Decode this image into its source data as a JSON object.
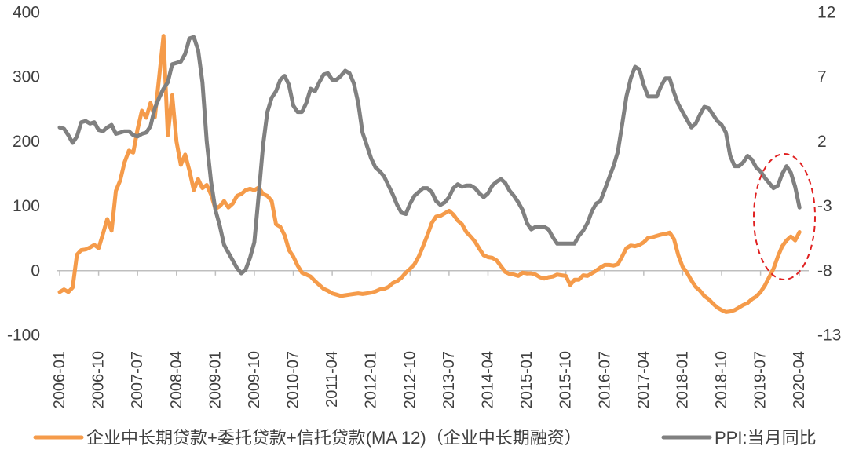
{
  "chart_data": {
    "type": "line",
    "legend": "bottom",
    "grid": false,
    "x": [
      "2006-01",
      "2006-02",
      "2006-03",
      "2006-04",
      "2006-05",
      "2006-06",
      "2006-07",
      "2006-08",
      "2006-09",
      "2006-10",
      "2006-11",
      "2006-12",
      "2007-01",
      "2007-02",
      "2007-03",
      "2007-04",
      "2007-05",
      "2007-06",
      "2007-07",
      "2007-08",
      "2007-09",
      "2007-10",
      "2007-11",
      "2007-12",
      "2008-01",
      "2008-02",
      "2008-03",
      "2008-04",
      "2008-05",
      "2008-06",
      "2008-07",
      "2008-08",
      "2008-09",
      "2008-10",
      "2008-11",
      "2008-12",
      "2009-01",
      "2009-02",
      "2009-03",
      "2009-04",
      "2009-05",
      "2009-06",
      "2009-07",
      "2009-08",
      "2009-09",
      "2009-10",
      "2009-11",
      "2009-12",
      "2010-01",
      "2010-02",
      "2010-03",
      "2010-04",
      "2010-05",
      "2010-06",
      "2010-07",
      "2010-08",
      "2010-09",
      "2010-10",
      "2010-11",
      "2010-12",
      "2011-01",
      "2011-02",
      "2011-03",
      "2011-04",
      "2011-05",
      "2011-06",
      "2011-07",
      "2011-08",
      "2011-09",
      "2011-10",
      "2011-11",
      "2011-12",
      "2012-01",
      "2012-02",
      "2012-03",
      "2012-04",
      "2012-05",
      "2012-06",
      "2012-07",
      "2012-08",
      "2012-09",
      "2012-10",
      "2012-11",
      "2012-12",
      "2013-01",
      "2013-02",
      "2013-03",
      "2013-04",
      "2013-05",
      "2013-06",
      "2013-07",
      "2013-08",
      "2013-09",
      "2013-10",
      "2013-11",
      "2013-12",
      "2014-01",
      "2014-02",
      "2014-03",
      "2014-04",
      "2014-05",
      "2014-06",
      "2014-07",
      "2014-08",
      "2014-09",
      "2014-10",
      "2014-11",
      "2014-12",
      "2015-01",
      "2015-02",
      "2015-03",
      "2015-04",
      "2015-05",
      "2015-06",
      "2015-07",
      "2015-08",
      "2015-09",
      "2015-10",
      "2015-11",
      "2015-12",
      "2016-01",
      "2016-02",
      "2016-03",
      "2016-04",
      "2016-05",
      "2016-06",
      "2016-07",
      "2016-08",
      "2016-09",
      "2016-10",
      "2016-11",
      "2016-12",
      "2017-01",
      "2017-02",
      "2017-03",
      "2017-04",
      "2017-05",
      "2017-06",
      "2017-07",
      "2017-08",
      "2017-09",
      "2017-10",
      "2017-11",
      "2017-12",
      "2018-01",
      "2018-02",
      "2018-03",
      "2018-04",
      "2018-05",
      "2018-06",
      "2018-07",
      "2018-08",
      "2018-09",
      "2018-10",
      "2018-11",
      "2018-12",
      "2019-01",
      "2019-02",
      "2019-03",
      "2019-04",
      "2019-05",
      "2019-06",
      "2019-07",
      "2019-08",
      "2019-09",
      "2019-10",
      "2019-11",
      "2019-12",
      "2020-01",
      "2020-02",
      "2020-03",
      "2020-04"
    ],
    "x_ticks": [
      "2006-01",
      "2006-10",
      "2007-07",
      "2008-04",
      "2009-01",
      "2009-10",
      "2010-07",
      "2011-04",
      "2012-01",
      "2012-10",
      "2013-07",
      "2014-04",
      "2015-01",
      "2015-10",
      "2016-07",
      "2017-04",
      "2018-01",
      "2018-10",
      "2019-07",
      "2020-04"
    ],
    "y_left": {
      "min": -100,
      "max": 400,
      "ticks": [
        -100,
        0,
        100,
        200,
        300,
        400
      ],
      "x_axis_crosses": 0
    },
    "y_right": {
      "min": -13,
      "max": 12,
      "ticks": [
        -13,
        -8,
        -3,
        2,
        7,
        12
      ]
    },
    "series": [
      {
        "name": "企业中长期贷款+委托贷款+信托贷款(MA 12)（企业中长期融资）",
        "axis": "left",
        "color": "#F59B4A",
        "values": [
          -33,
          -29,
          -33,
          -26,
          25,
          32,
          33,
          36,
          40,
          35,
          57,
          80,
          62,
          124,
          140,
          168,
          186,
          183,
          219,
          248,
          237,
          260,
          238,
          300,
          364,
          210,
          272,
          200,
          164,
          180,
          155,
          125,
          142,
          128,
          133,
          118,
          96,
          100,
          108,
          98,
          104,
          116,
          119,
          125,
          127,
          125,
          129,
          119,
          116,
          108,
          72,
          68,
          55,
          32,
          22,
          8,
          -3,
          -6,
          -9,
          -16,
          -22,
          -28,
          -31,
          -35,
          -37,
          -39,
          -38,
          -37,
          -36,
          -35,
          -36,
          -35,
          -34,
          -32,
          -29,
          -28,
          -25,
          -19,
          -16,
          -11,
          -3,
          3,
          10,
          22,
          38,
          55,
          74,
          84,
          85,
          89,
          93,
          87,
          78,
          72,
          60,
          53,
          45,
          34,
          24,
          21,
          20,
          16,
          7,
          -2,
          -5,
          -6,
          -8,
          -3,
          -4,
          -4,
          -6,
          -10,
          -12,
          -10,
          -9,
          -6,
          -7,
          -8,
          -22,
          -14,
          -14,
          -7,
          -8,
          -4,
          0,
          5,
          9,
          9,
          8,
          10,
          22,
          35,
          39,
          38,
          40,
          44,
          51,
          52,
          54,
          56,
          57,
          59,
          49,
          24,
          6,
          -3,
          -15,
          -25,
          -31,
          -39,
          -44,
          -51,
          -57,
          -61,
          -64,
          -63,
          -61,
          -57,
          -53,
          -50,
          -44,
          -40,
          -33,
          -23,
          -10,
          3,
          22,
          38,
          47,
          53,
          47,
          60
        ]
      },
      {
        "name": "PPI:当月同比",
        "axis": "right",
        "color": "#808080",
        "values": [
          3.1,
          3.0,
          2.5,
          1.9,
          2.4,
          3.5,
          3.6,
          3.4,
          3.5,
          2.9,
          2.8,
          3.1,
          3.3,
          2.6,
          2.7,
          2.8,
          2.8,
          2.5,
          2.4,
          2.6,
          2.7,
          3.2,
          4.6,
          5.4,
          6.1,
          6.6,
          8.0,
          8.1,
          8.2,
          8.8,
          10.0,
          10.1,
          9.1,
          6.6,
          2.0,
          -1.1,
          -3.3,
          -4.5,
          -6.0,
          -6.6,
          -7.2,
          -7.8,
          -8.2,
          -7.9,
          -7.0,
          -5.8,
          -2.1,
          1.7,
          4.3,
          5.4,
          5.9,
          6.8,
          7.1,
          6.4,
          4.8,
          4.3,
          4.3,
          5.0,
          6.1,
          5.9,
          6.6,
          7.2,
          7.3,
          6.8,
          6.8,
          7.1,
          7.5,
          7.3,
          6.5,
          5.0,
          2.7,
          1.7,
          0.7,
          0.0,
          -0.3,
          -0.7,
          -1.4,
          -2.1,
          -2.9,
          -3.5,
          -3.6,
          -2.8,
          -2.2,
          -1.9,
          -1.6,
          -1.6,
          -1.9,
          -2.6,
          -2.9,
          -2.7,
          -2.3,
          -1.6,
          -1.3,
          -1.5,
          -1.4,
          -1.4,
          -1.6,
          -2.0,
          -2.3,
          -2.0,
          -1.4,
          -1.1,
          -0.9,
          -1.2,
          -1.8,
          -2.2,
          -2.7,
          -3.3,
          -4.3,
          -4.8,
          -4.6,
          -4.6,
          -4.6,
          -4.8,
          -5.4,
          -5.9,
          -5.9,
          -5.9,
          -5.9,
          -5.9,
          -5.3,
          -4.9,
          -4.3,
          -3.4,
          -2.8,
          -2.6,
          -1.7,
          -0.8,
          0.1,
          1.2,
          3.3,
          5.5,
          6.9,
          7.8,
          7.6,
          6.4,
          5.5,
          5.5,
          5.5,
          6.3,
          6.9,
          6.9,
          5.8,
          4.9,
          4.3,
          3.7,
          3.1,
          3.4,
          4.1,
          4.7,
          4.6,
          4.1,
          3.6,
          3.3,
          2.7,
          0.9,
          0.1,
          0.1,
          0.4,
          0.9,
          0.6,
          0.0,
          -0.3,
          -0.8,
          -1.2,
          -1.6,
          -1.4,
          -0.5,
          0.1,
          -0.4,
          -1.5,
          -3.1
        ]
      }
    ],
    "annotation_color": "#E02020",
    "axis_line_color": "#BFBFBF",
    "text_color": "#404040"
  }
}
